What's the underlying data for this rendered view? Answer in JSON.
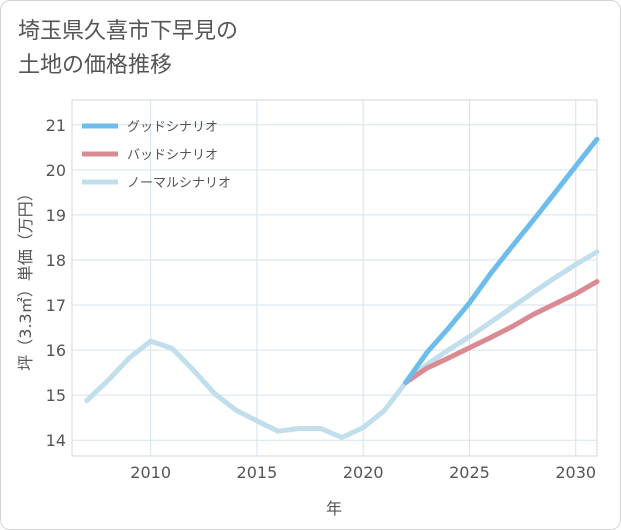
{
  "title_lines": [
    "埼玉県久喜市下早見の",
    "土地の価格推移"
  ],
  "chart_data": {
    "type": "line",
    "xlabel": "年",
    "ylabel": "坪（3.3㎡）単価（万円）",
    "xlim": [
      2006.3,
      2031
    ],
    "ylim": [
      13.65,
      21.55
    ],
    "x_ticks": [
      2010,
      2015,
      2020,
      2025,
      2030
    ],
    "y_ticks": [
      14,
      15,
      16,
      17,
      18,
      19,
      20,
      21
    ],
    "grid": true,
    "legend_position": "top-left",
    "series": [
      {
        "name": "グッドシナリオ",
        "color": "#6cbdec",
        "x": [
          2022,
          2023,
          2024,
          2025,
          2026,
          2027,
          2028,
          2029,
          2030,
          2031
        ],
        "y": [
          15.28,
          15.95,
          16.48,
          17.05,
          17.7,
          18.3,
          18.88,
          19.48,
          20.08,
          20.68
        ]
      },
      {
        "name": "バッドシナリオ",
        "color": "#d98a93",
        "x": [
          2022,
          2023,
          2024,
          2025,
          2026,
          2027,
          2028,
          2029,
          2030,
          2031
        ],
        "y": [
          15.28,
          15.6,
          15.82,
          16.05,
          16.28,
          16.52,
          16.79,
          17.02,
          17.25,
          17.52
        ]
      },
      {
        "name": "ノーマルシナリオ",
        "color": "#c0deec",
        "x": [
          2022,
          2023,
          2024,
          2025,
          2026,
          2027,
          2028,
          2029,
          2030,
          2031
        ],
        "y": [
          15.28,
          15.68,
          16.0,
          16.3,
          16.62,
          16.95,
          17.28,
          17.6,
          17.9,
          18.18
        ]
      },
      {
        "name": "",
        "color": "#c0deec",
        "x": [
          2007,
          2008,
          2009,
          2010,
          2011,
          2012,
          2013,
          2014,
          2015,
          2016,
          2017,
          2018,
          2019,
          2020,
          2021,
          2022
        ],
        "y": [
          14.88,
          15.33,
          15.83,
          16.2,
          16.04,
          15.56,
          15.04,
          14.67,
          14.43,
          14.2,
          14.26,
          14.26,
          14.06,
          14.28,
          14.66,
          15.28
        ]
      }
    ]
  }
}
